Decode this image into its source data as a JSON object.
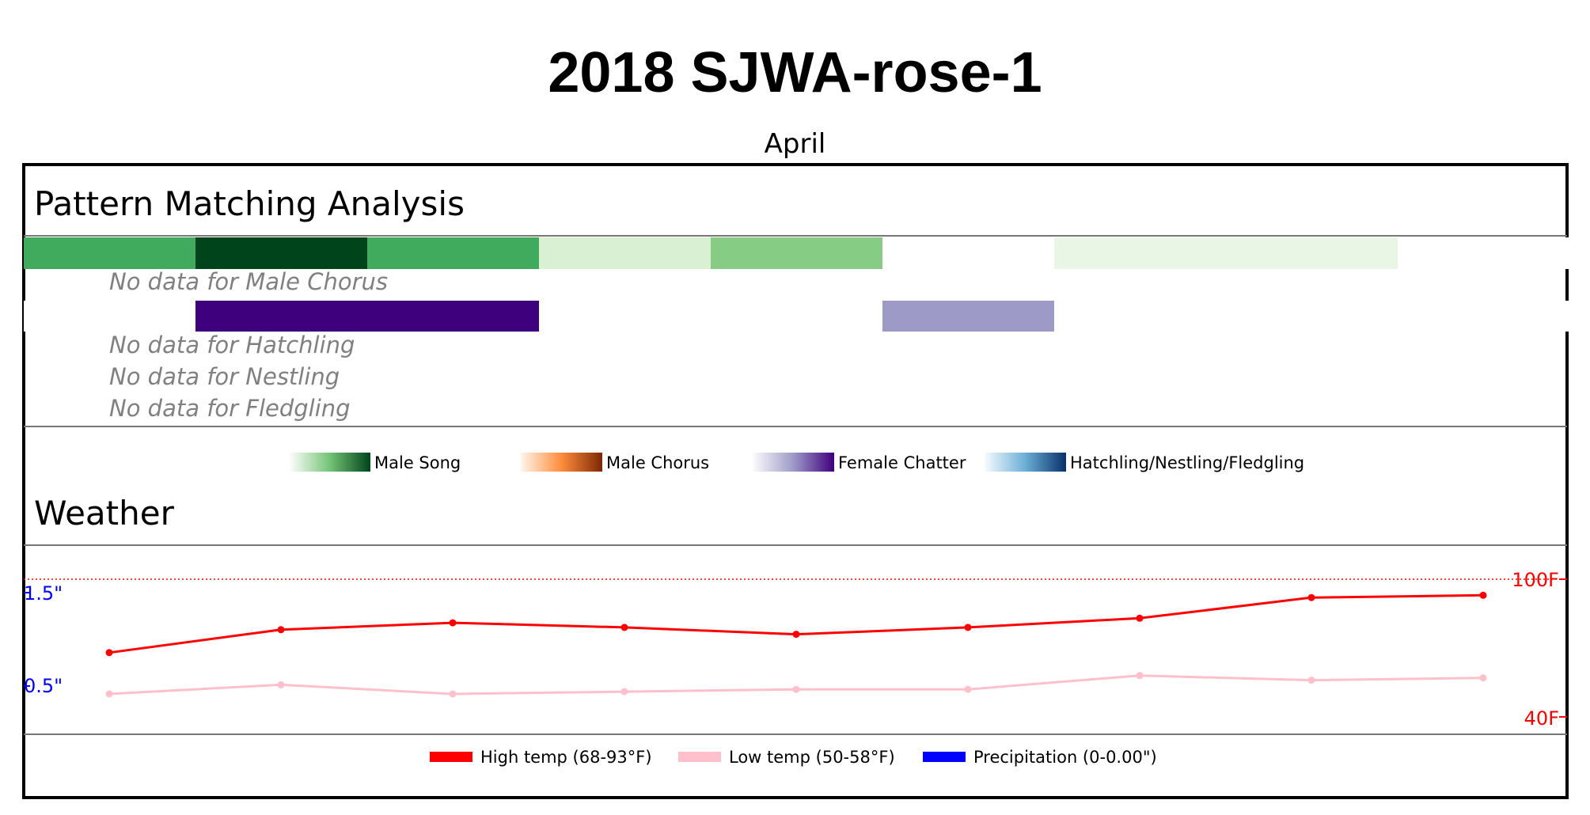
{
  "title": "2018 SJWA-rose-1",
  "month": "April",
  "pattern_section": {
    "title": "Pattern Matching Analysis",
    "no_data_messages": [
      "No data for Male Chorus",
      "No data for Hatchling",
      "No data for Nestling",
      "No data for Fledgling"
    ],
    "legend": [
      "Male Song",
      "Male Chorus",
      "Female Chatter",
      "Hatchling/Nestling/Fledgling"
    ]
  },
  "weather_section": {
    "title": "Weather",
    "precip_ticks": [
      "1.5\"",
      "0.5\""
    ],
    "temp_ticks": [
      "100F",
      "40F"
    ],
    "legend": [
      "High temp (68-93°F)",
      "Low temp (50-58°F)",
      "Precipitation (0-0.00\")"
    ]
  },
  "colors": {
    "high_temp": "#ff0000",
    "low_temp": "#ffc0cb",
    "precipitation": "#0000ff",
    "male_song": [
      "#40aa5d",
      "#00441b",
      "#40aa5d",
      "#d9f0d3",
      "#86cc85",
      "#ffffff",
      "#eaf6e5",
      "#eaf6e5",
      "#ffffff"
    ],
    "female_chatter": [
      "#ffffff",
      "#3f007d",
      "#3f007d",
      "#ffffff",
      "#ffffff",
      "#9e9ac8",
      "#ffffff",
      "#ffffff",
      "#ffffff"
    ]
  },
  "chart_data": [
    {
      "type": "heatmap",
      "title": "Pattern Matching Analysis",
      "rows": [
        {
          "name": "Male Song",
          "segments": 9,
          "intensity": [
            0.6,
            1.0,
            0.6,
            0.15,
            0.4,
            0.0,
            0.05,
            0.05,
            0.0
          ]
        },
        {
          "name": "Male Chorus",
          "no_data": true
        },
        {
          "name": "Female Chatter",
          "segments": 9,
          "intensity": [
            0.0,
            1.0,
            1.0,
            0.0,
            0.0,
            0.4,
            0.0,
            0.0,
            0.0
          ]
        },
        {
          "name": "Hatchling",
          "no_data": true
        },
        {
          "name": "Nestling",
          "no_data": true
        },
        {
          "name": "Fledgling",
          "no_data": true
        }
      ]
    },
    {
      "type": "line",
      "title": "Weather",
      "x": [
        1,
        2,
        3,
        4,
        5,
        6,
        7,
        8,
        9
      ],
      "temp_range": [
        40,
        100
      ],
      "precip_range": [
        0,
        2
      ],
      "series": [
        {
          "name": "High temp (68-93°F)",
          "color": "#ff0000",
          "values": [
            68,
            78,
            81,
            79,
            76,
            79,
            83,
            92,
            93
          ]
        },
        {
          "name": "Low temp (50-58°F)",
          "color": "#ffc0cb",
          "values": [
            50,
            54,
            50,
            51,
            52,
            52,
            58,
            56,
            57
          ]
        },
        {
          "name": "Precipitation (0-0.00\")",
          "color": "#0000ff",
          "values": [
            0,
            0,
            0,
            0,
            0,
            0,
            0,
            0,
            0
          ]
        }
      ]
    }
  ]
}
